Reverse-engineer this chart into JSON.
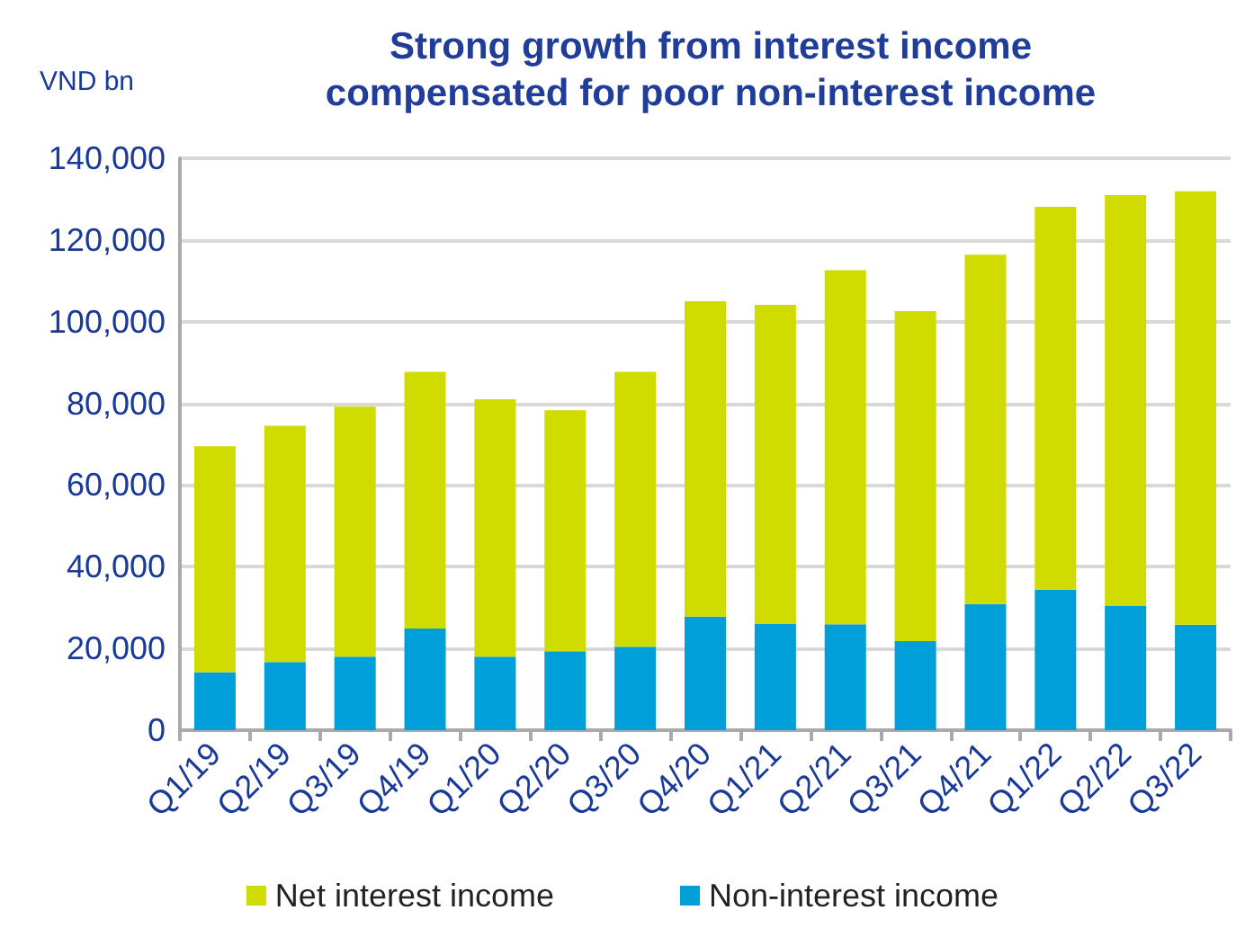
{
  "chart_data": {
    "type": "bar",
    "title": "Strong growth from interest income\ncompensated for poor non-interest income",
    "ylabel": "VND bn",
    "categories": [
      "Q1/19",
      "Q2/19",
      "Q3/19",
      "Q4/19",
      "Q1/20",
      "Q2/20",
      "Q3/20",
      "Q4/20",
      "Q1/21",
      "Q2/21",
      "Q3/21",
      "Q4/21",
      "Q1/22",
      "Q2/22",
      "Q3/22"
    ],
    "series": [
      {
        "name": "Non-interest income",
        "color": "#009fd9",
        "values": [
          14200,
          16700,
          18000,
          24900,
          18000,
          19300,
          20400,
          27800,
          26100,
          25900,
          21800,
          30900,
          34400,
          30500,
          25800
        ]
      },
      {
        "name": "Net interest income",
        "color": "#d0db00",
        "values": [
          55300,
          57800,
          61200,
          62800,
          63000,
          59000,
          67300,
          77200,
          78000,
          86700,
          80800,
          85500,
          93700,
          100500,
          106100
        ]
      }
    ],
    "stacked": true,
    "ylim": [
      0,
      140000
    ],
    "yticks": [
      0,
      {
        "value": 20000,
        "label": "20,000"
      },
      {
        "value": 40000,
        "label": "40,000"
      },
      {
        "value": 60000,
        "label": "60,000"
      },
      {
        "value": 80000,
        "label": "80,000"
      },
      {
        "value": 100000,
        "label": "100,000"
      },
      {
        "value": 120000,
        "label": "120,000"
      },
      {
        "value": 140000,
        "label": "140,000"
      }
    ],
    "grid": "y",
    "legend": "bottom"
  }
}
